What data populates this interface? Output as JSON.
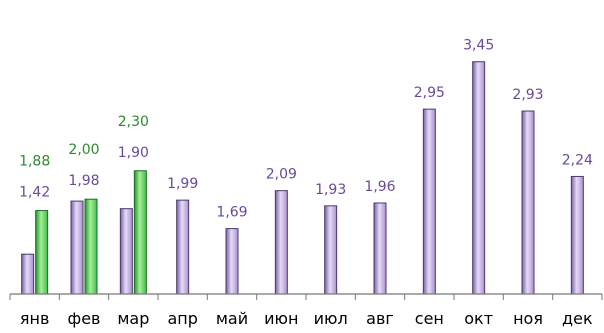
{
  "chart_data": {
    "type": "bar",
    "categories": [
      "янв",
      "фев",
      "мар",
      "апр",
      "май",
      "июн",
      "июл",
      "авг",
      "сен",
      "окт",
      "ноя",
      "дек"
    ],
    "series": [
      {
        "values": [
          1.42,
          1.98,
          1.9,
          1.99,
          1.69,
          2.09,
          1.93,
          1.96,
          2.95,
          3.45,
          2.93,
          2.24
        ],
        "labels": [
          "1,42",
          "1,98",
          "1,90",
          "1,99",
          "1,69",
          "2,09",
          "1,93",
          "1,96",
          "2,95",
          "3,45",
          "2,93",
          "2,24"
        ],
        "color": "#a98fd0",
        "label_color": "#6a4a9a"
      },
      {
        "values": [
          1.88,
          2.0,
          2.3,
          null,
          null,
          null,
          null,
          null,
          null,
          null,
          null,
          null
        ],
        "labels": [
          "1,88",
          "2,00",
          "2,30",
          "",
          "",
          "",
          "",
          "",
          "",
          "",
          "",
          ""
        ],
        "color": "#3ec04a",
        "label_color": "#2e8a2e"
      }
    ],
    "ylim": [
      1.0,
      3.5
    ],
    "grid": false,
    "legend": "none",
    "axis_color": "#777777"
  }
}
